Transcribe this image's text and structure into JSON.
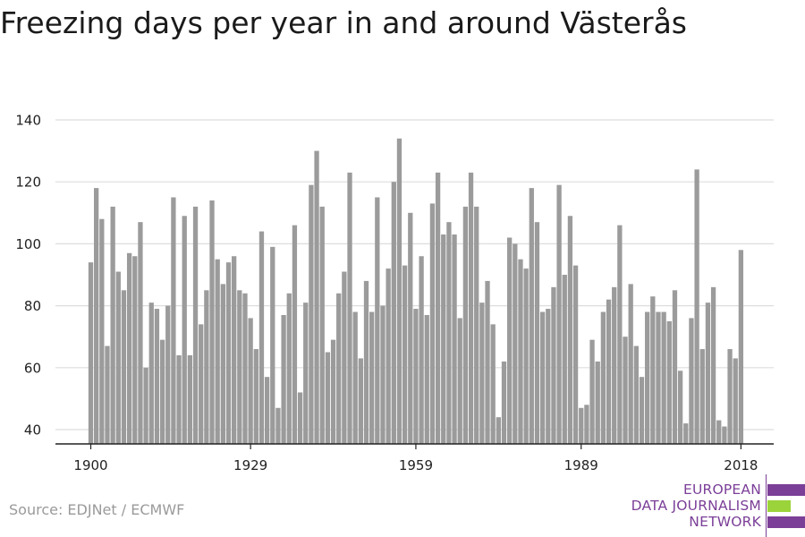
{
  "title": "Freezing days per year in and around Västerås",
  "source": "Source: EDJNet / ECMWF",
  "logo": {
    "line1": "EUROPEAN",
    "line2": "DATA JOURNALISM",
    "line3": "NETWORK",
    "colors": [
      "#7b3f98",
      "#9bd33a",
      "#7b3f98"
    ]
  },
  "colors": {
    "bar": "#9b9b9b",
    "grid": "#dddddd",
    "axis": "#222222",
    "logo_text": "#7b3f98"
  },
  "chart_data": {
    "type": "bar",
    "title": "Freezing days per year in and around Västerås",
    "xlabel": "",
    "ylabel": "",
    "ylim": [
      35,
      142
    ],
    "yticks": [
      40,
      60,
      80,
      100,
      120,
      140
    ],
    "xticks": [
      1900,
      1929,
      1959,
      1989,
      2018
    ],
    "grid": true,
    "x": [
      1900,
      1901,
      1902,
      1903,
      1904,
      1905,
      1906,
      1907,
      1908,
      1909,
      1910,
      1911,
      1912,
      1913,
      1914,
      1915,
      1916,
      1917,
      1918,
      1919,
      1920,
      1921,
      1922,
      1923,
      1924,
      1925,
      1926,
      1927,
      1928,
      1929,
      1930,
      1931,
      1932,
      1933,
      1934,
      1935,
      1936,
      1937,
      1938,
      1939,
      1940,
      1941,
      1942,
      1943,
      1944,
      1945,
      1946,
      1947,
      1948,
      1949,
      1950,
      1951,
      1952,
      1953,
      1954,
      1955,
      1956,
      1957,
      1958,
      1959,
      1960,
      1961,
      1962,
      1963,
      1964,
      1965,
      1966,
      1967,
      1968,
      1969,
      1970,
      1971,
      1972,
      1973,
      1974,
      1975,
      1976,
      1977,
      1978,
      1979,
      1980,
      1981,
      1982,
      1983,
      1984,
      1985,
      1986,
      1987,
      1988,
      1989,
      1990,
      1991,
      1992,
      1993,
      1994,
      1995,
      1996,
      1997,
      1998,
      1999,
      2000,
      2001,
      2002,
      2003,
      2004,
      2005,
      2006,
      2007,
      2008,
      2009,
      2010,
      2011,
      2012,
      2013,
      2014,
      2015,
      2016,
      2017,
      2018
    ],
    "values": [
      94,
      118,
      108,
      67,
      112,
      91,
      85,
      97,
      96,
      107,
      60,
      81,
      79,
      69,
      80,
      115,
      64,
      109,
      64,
      112,
      74,
      85,
      114,
      95,
      87,
      94,
      96,
      85,
      84,
      76,
      66,
      104,
      57,
      99,
      47,
      77,
      84,
      106,
      52,
      81,
      119,
      130,
      112,
      65,
      69,
      84,
      91,
      123,
      78,
      63,
      88,
      78,
      115,
      80,
      92,
      120,
      134,
      93,
      110,
      79,
      96,
      77,
      113,
      123,
      103,
      107,
      103,
      76,
      112,
      123,
      112,
      81,
      88,
      74,
      44,
      62,
      102,
      100,
      95,
      92,
      118,
      107,
      78,
      79,
      86,
      119,
      90,
      109,
      93,
      47,
      48,
      69,
      62,
      78,
      82,
      86,
      106,
      70,
      87,
      67,
      57,
      78,
      83,
      78,
      78,
      75,
      85,
      59,
      42,
      76,
      124,
      66,
      81,
      86,
      43,
      41,
      66,
      63,
      98
    ]
  }
}
